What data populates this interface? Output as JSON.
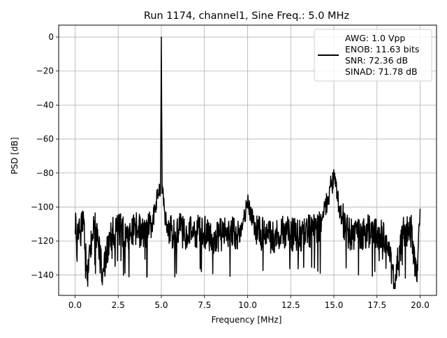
{
  "chart_data": {
    "type": "line",
    "title": "Run 1174, channel1, Sine Freq.: 5.0 MHz",
    "xlabel": "Frequency [MHz]",
    "ylabel": "PSD [dB]",
    "xlim": [
      -0.95,
      20.95
    ],
    "ylim": [
      -152,
      7
    ],
    "xticks": [
      0.0,
      2.5,
      5.0,
      7.5,
      10.0,
      12.5,
      15.0,
      17.5,
      20.0
    ],
    "xtick_labels": [
      "0.0",
      "2.5",
      "5.0",
      "7.5",
      "10.0",
      "12.5",
      "15.0",
      "17.5",
      "20.0"
    ],
    "yticks": [
      0,
      -20,
      -40,
      -60,
      -80,
      -100,
      -120,
      -140
    ],
    "ytick_labels": [
      "0",
      "−20",
      "−40",
      "−60",
      "−80",
      "−100",
      "−120",
      "−140"
    ],
    "grid": true,
    "legend_position": "top-right",
    "series": [
      {
        "color": "#000000",
        "noise_floor_db": -116,
        "noise_band_db": [
          -125,
          -106
        ],
        "x": [
          0.0,
          0.05,
          0.1,
          0.15,
          0.2,
          0.3,
          0.5,
          0.7,
          1.0,
          1.2,
          1.6,
          2.0,
          2.5,
          3.0,
          3.5,
          4.0,
          4.3,
          4.5,
          4.6,
          4.7,
          4.8,
          4.9,
          4.95,
          5.0,
          5.05,
          5.1,
          5.2,
          5.3,
          5.4,
          5.5,
          5.6,
          5.8,
          6.0,
          6.5,
          7.0,
          7.5,
          8.0,
          8.5,
          9.0,
          9.5,
          10.0,
          10.5,
          11.0,
          11.5,
          12.0,
          12.5,
          13.0,
          13.5,
          14.0,
          14.3,
          14.5,
          14.7,
          14.8,
          14.9,
          15.0,
          15.1,
          15.2,
          15.3,
          15.5,
          15.8,
          16.0,
          16.5,
          17.0,
          17.5,
          18.0,
          18.5,
          19.0,
          19.5,
          19.8,
          20.0
        ],
        "y": [
          -114,
          -106,
          -129,
          -110,
          -119,
          -114,
          -110,
          -143,
          -116,
          -112,
          -139,
          -118,
          -113,
          -116,
          -112,
          -116,
          -113,
          -109,
          -103,
          -97,
          -95,
          -88,
          -92,
          0,
          -92,
          -89,
          -103,
          -110,
          -113,
          -116,
          -114,
          -118,
          -113,
          -116,
          -114,
          -115,
          -118,
          -116,
          -114,
          -117,
          -98,
          -115,
          -116,
          -118,
          -114,
          -116,
          -117,
          -114,
          -113,
          -108,
          -100,
          -94,
          -87,
          -89,
          -78,
          -88,
          -93,
          -100,
          -107,
          -114,
          -116,
          -117,
          -114,
          -116,
          -117,
          -145,
          -116,
          -114,
          -143,
          -101
        ],
        "name": ""
      }
    ]
  },
  "legend": {
    "lines": [
      "AWG: 1.0 Vpp",
      "ENOB: 11.63 bits",
      "SNR: 72.36 dB",
      "SINAD: 71.78 dB"
    ]
  }
}
